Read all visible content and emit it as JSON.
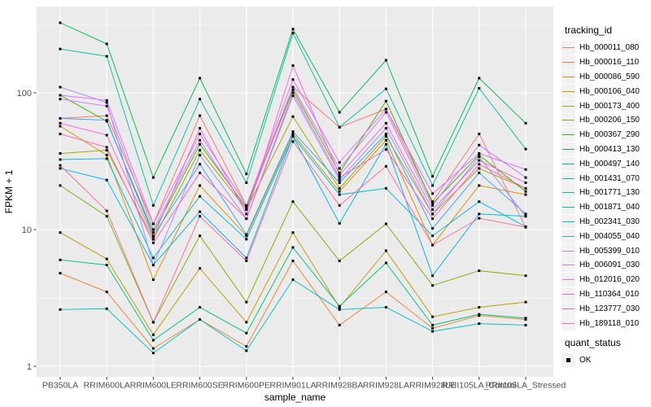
{
  "colors": {
    "panel_bg": "#EBEBEB",
    "grid": "#FFFFFF",
    "tick_mark": "#333333",
    "tick_label": "#4D4D4D",
    "axis_title": "#000000",
    "legend_key_bg": "#F2F2F2",
    "point": "#000000"
  },
  "legend": {
    "title": "tracking_id"
  },
  "quant_legend": {
    "title": "quant_status",
    "items": [
      {
        "label": "OK",
        "marker": "filled-black-square"
      }
    ]
  },
  "chart_data": {
    "type": "line",
    "title": "",
    "xlabel": "sample_name",
    "ylabel": "FPKM + 1",
    "yscale": "log10",
    "ylim": [
      0.85,
      430
    ],
    "grid": "on",
    "legend_position": "right",
    "point_marker": {
      "shape": "filled-square",
      "color": "#000000",
      "size": 3
    },
    "y_major_ticks": [
      100,
      10,
      1
    ],
    "y_minor_ticks": [
      316.23,
      31.62,
      3.162
    ],
    "categories": [
      "PB350LA",
      "RRIM600LA",
      "RRIM600LE",
      "RRIM600SE",
      "RRIM600PE",
      "RRIM901LA",
      "RRIM928BA",
      "RRIM928LA",
      "RRIM928LE",
      "RRII105LA_Control",
      "RRII105LA_Stressed"
    ],
    "series": [
      {
        "name": "Hb_000011_080",
        "color": "#F8766D",
        "values": [
          65,
          68,
          11,
          68,
          15,
          110,
          56,
          76,
          16,
          50,
          10.4
        ]
      },
      {
        "name": "Hb_000016_110",
        "color": "#EA8331",
        "values": [
          4.8,
          3.5,
          1.35,
          2.2,
          1.4,
          5.9,
          2.0,
          3.5,
          1.9,
          2.35,
          2.2
        ]
      },
      {
        "name": "Hb_000086_590",
        "color": "#D89000",
        "values": [
          57,
          35,
          4.3,
          21,
          9,
          50,
          19,
          45,
          7.7,
          21,
          18
        ]
      },
      {
        "name": "Hb_000106_040",
        "color": "#C09B00",
        "values": [
          9.5,
          6.1,
          1.7,
          5.2,
          2.1,
          9.5,
          2.7,
          7.0,
          2.3,
          2.7,
          2.95
        ]
      },
      {
        "name": "Hb_000173_400",
        "color": "#A3A500",
        "values": [
          36,
          38,
          8.5,
          38,
          14,
          67,
          20,
          48,
          13,
          28,
          20
        ]
      },
      {
        "name": "Hb_000206_150",
        "color": "#7CAE00",
        "values": [
          21,
          12.5,
          2.1,
          9,
          2.95,
          16,
          5.9,
          11,
          3.9,
          5.0,
          4.6
        ]
      },
      {
        "name": "Hb_000367_290",
        "color": "#39B600",
        "values": [
          96,
          62,
          9.5,
          42,
          14.5,
          105,
          26,
          87,
          15.5,
          35,
          19
        ]
      },
      {
        "name": "Hb_000413_130",
        "color": "#00BB4E",
        "values": [
          325,
          228,
          24,
          128,
          25.5,
          292,
          72,
          173,
          24.5,
          128,
          60
        ]
      },
      {
        "name": "Hb_000497_140",
        "color": "#00BF7D",
        "values": [
          6.0,
          5.5,
          1.55,
          2.7,
          1.75,
          7.4,
          2.75,
          5.7,
          2.0,
          2.4,
          2.25
        ]
      },
      {
        "name": "Hb_001431_070",
        "color": "#00C1A3",
        "values": [
          209,
          185,
          15,
          90,
          22,
          273,
          56,
          107,
          21,
          108,
          38.8
        ]
      },
      {
        "name": "Hb_001771_130",
        "color": "#00BFC4",
        "values": [
          2.6,
          2.64,
          1.25,
          2.2,
          1.3,
          4.3,
          2.6,
          2.7,
          1.8,
          2.05,
          2.0
        ]
      },
      {
        "name": "Hb_001871_040",
        "color": "#00BADE",
        "values": [
          32.5,
          33,
          6.2,
          17.5,
          8.5,
          48,
          18,
          20,
          9.0,
          16,
          10.5
        ]
      },
      {
        "name": "Hb_002341_030",
        "color": "#00B0F6",
        "values": [
          28,
          23,
          5.5,
          13.5,
          6.2,
          48,
          11.1,
          42,
          4.6,
          13,
          12.5
        ]
      },
      {
        "name": "Hb_004055_040",
        "color": "#35A2FF",
        "values": [
          65,
          63,
          9.0,
          30,
          9.2,
          52,
          22,
          50,
          10.2,
          26,
          13
        ]
      },
      {
        "name": "Hb_005399_010",
        "color": "#9590FF",
        "values": [
          110,
          85,
          5.5,
          35,
          12,
          95,
          23,
          55,
          13,
          34,
          12.5
        ]
      },
      {
        "name": "Hb_006091_030",
        "color": "#C77CFF",
        "values": [
          90,
          80,
          10,
          45,
          14,
          110,
          28,
          72,
          15,
          41.5,
          24
        ]
      },
      {
        "name": "Hb_012016_020",
        "color": "#E76BF3",
        "values": [
          96,
          88,
          11,
          50,
          15,
          125,
          31,
          76,
          18.3,
          36,
          27.5
        ]
      },
      {
        "name": "Hb_110364_010",
        "color": "#FA62DB",
        "values": [
          60,
          49,
          8.8,
          55,
          13,
          158,
          25,
          60,
          14,
          32,
          22
        ]
      },
      {
        "name": "Hb_123777_030",
        "color": "#FF62BC",
        "values": [
          50,
          40,
          8.0,
          26,
          12,
          100,
          24,
          38.5,
          12,
          30,
          20
        ]
      },
      {
        "name": "Hb_189118_010",
        "color": "#FF6A98",
        "values": [
          29.5,
          13.7,
          2.1,
          12.5,
          5.9,
          44,
          15,
          29,
          7.7,
          12.1,
          10.4
        ]
      }
    ]
  }
}
